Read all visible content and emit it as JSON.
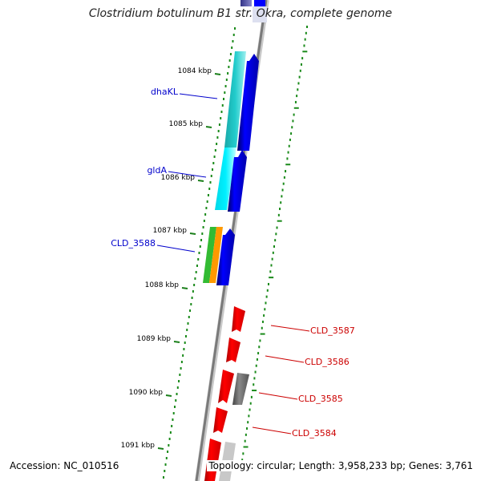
{
  "title": "Clostridium botulinum B1 str. Okra, complete genome",
  "footer": {
    "accession": "Accession: NC_010516",
    "topology": "Topology: circular; Length: 3,958,233 bp; Genes: 3,761"
  },
  "ticks": [
    "1084 kbp",
    "1085 kbp",
    "1086 kbp",
    "1087 kbp",
    "1088 kbp",
    "1089 kbp",
    "1090 kbp",
    "1091 kbp"
  ],
  "genes_left": [
    "dhaKL",
    "gldA",
    "CLD_3588"
  ],
  "genes_right": [
    "CLD_3587",
    "CLD_3586",
    "CLD_3585",
    "CLD_3584"
  ],
  "colors": {
    "tick": "#1a7f1a",
    "dot": "#1a8a1a",
    "gene_blue": "#0000ee",
    "gene_red": "#ee0000",
    "gene_gray": "#666666",
    "cyan": "#00e0f0",
    "teal": "#20c0c0",
    "green": "#33bb33",
    "orange": "#ff9900",
    "label_left": "#0000cc",
    "label_right": "#cc0000",
    "backbone": "#888888"
  }
}
